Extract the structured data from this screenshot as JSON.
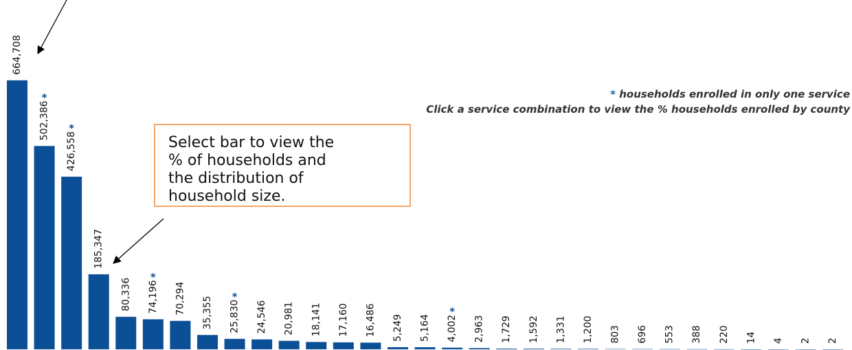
{
  "chart_data": {
    "type": "bar",
    "values": [
      664708,
      502386,
      426558,
      185347,
      80336,
      74196,
      70294,
      35355,
      25830,
      24546,
      20981,
      18141,
      17160,
      16486,
      5249,
      5164,
      4002,
      2963,
      1729,
      1592,
      1331,
      1200,
      803,
      696,
      553,
      388,
      220,
      14,
      4,
      2,
      2
    ],
    "value_labels": [
      "664,708",
      "502,386",
      "426,558",
      "185,347",
      "80,336",
      "74,196",
      "70,294",
      "35,355",
      "25,830",
      "24,546",
      "20,981",
      "18,141",
      "17,160",
      "16,486",
      "5,249",
      "5,164",
      "4,002",
      "2,963",
      "1,729",
      "1,592",
      "1,331",
      "1,200",
      "803",
      "696",
      "553",
      "388",
      "220",
      "14",
      "4",
      "2",
      "2"
    ],
    "markers": [
      null,
      "*",
      "*",
      null,
      null,
      "*",
      null,
      null,
      "*",
      null,
      null,
      null,
      null,
      null,
      null,
      null,
      "*",
      null,
      null,
      null,
      null,
      null,
      null,
      null,
      null,
      null,
      null,
      null,
      null,
      null,
      null
    ],
    "color": "#0b4f96",
    "marker_color": "#1b5fa8",
    "ylim": [
      0,
      700000
    ],
    "note_marker": "*",
    "note": "households enrolled in only one service",
    "instruction": "Click a service combination to view the % households enrolled by county",
    "callout": [
      "Select bar to view the",
      "% of households and",
      "the distribution of",
      "household size."
    ]
  }
}
